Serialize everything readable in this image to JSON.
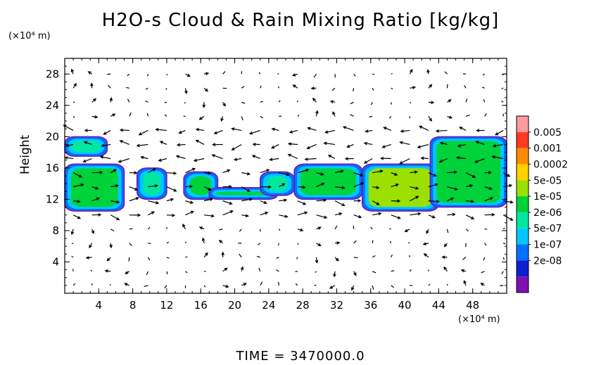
{
  "chart_data": {
    "type": "heatmap",
    "title": "H2O-s Cloud & Rain Mixing Ratio [kg/kg]",
    "ylabel": "Height",
    "y_scale_note": "(×10⁴ m)",
    "x_scale_note": "(×10⁴ m)",
    "footer": "TIME = 3470000.0",
    "xlim": [
      0,
      52
    ],
    "ylim": [
      0,
      30
    ],
    "x_ticks": [
      "4",
      "8",
      "12",
      "16",
      "20",
      "24",
      "28",
      "32",
      "36",
      "40",
      "44",
      "48"
    ],
    "y_ticks": [
      "4",
      "8",
      "12",
      "16",
      "20",
      "24",
      "28"
    ],
    "colorbar": {
      "labels": [
        "0.005",
        "0.001",
        "0.0002",
        "5e-05",
        "1e-05",
        "2e-06",
        "5e-07",
        "1e-07",
        "2e-08"
      ],
      "colors": [
        "#ff9aa0",
        "#ff3a20",
        "#ff8c00",
        "#ffd200",
        "#9be000",
        "#00d23a",
        "#00e8a0",
        "#00c8ff",
        "#0070ff",
        "#1020d0",
        "#8010b0"
      ]
    },
    "cloud_regions": [
      {
        "x": [
          0,
          5
        ],
        "y": [
          17.5,
          20
        ],
        "level": 5
      },
      {
        "x": [
          0,
          7
        ],
        "y": [
          10.5,
          16.5
        ],
        "level": 4
      },
      {
        "x": [
          8.5,
          12
        ],
        "y": [
          12,
          16
        ],
        "level": 5
      },
      {
        "x": [
          14,
          18
        ],
        "y": [
          12,
          15.5
        ],
        "level": 4
      },
      {
        "x": [
          17,
          25
        ],
        "y": [
          12,
          13.5
        ],
        "level": 4
      },
      {
        "x": [
          23,
          27
        ],
        "y": [
          12.5,
          15.5
        ],
        "level": 5
      },
      {
        "x": [
          27,
          35
        ],
        "y": [
          12,
          16.5
        ],
        "level": 4
      },
      {
        "x": [
          35,
          44
        ],
        "y": [
          10.5,
          16.5
        ],
        "level": 3
      },
      {
        "x": [
          43,
          52
        ],
        "y": [
          11,
          20
        ],
        "level": 4
      }
    ]
  }
}
